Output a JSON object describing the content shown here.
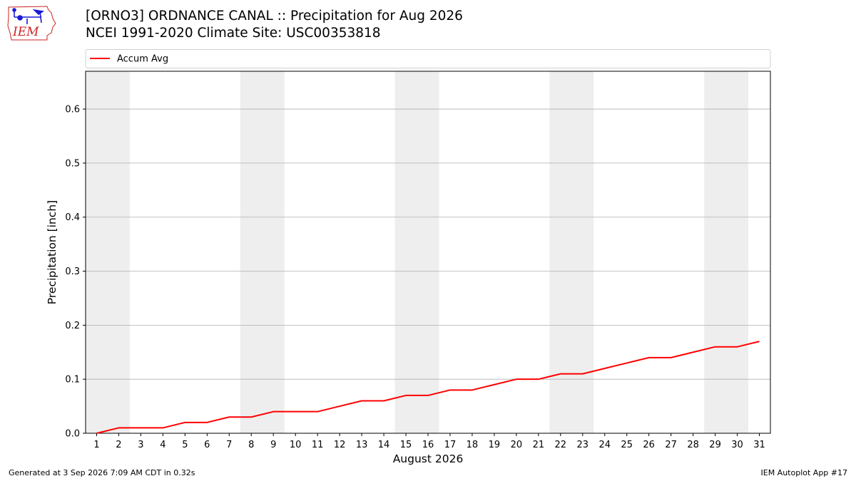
{
  "header": {
    "title_line1": "[ORNO3] ORDNANCE CANAL :: Precipitation for Aug 2026",
    "title_line2": "NCEI 1991-2020 Climate Site: USC00353818",
    "logo_text": "IEM"
  },
  "footer": {
    "left": "Generated at 3 Sep 2026 7:09 AM CDT in 0.32s",
    "right": "IEM Autoplot App #17"
  },
  "colors": {
    "line": "#ff0000",
    "weekend_band": "#eeeeee",
    "grid": "#b0b0b0",
    "logo_blue": "#1a1ad6",
    "logo_red": "#cc2222"
  },
  "chart_data": {
    "type": "line",
    "xlabel": "August 2026",
    "ylabel": "Precipitation [inch]",
    "ylim": [
      0,
      0.67
    ],
    "yticks": [
      0.0,
      0.1,
      0.2,
      0.3,
      0.4,
      0.5,
      0.6
    ],
    "ytick_labels": [
      "0.0",
      "0.1",
      "0.2",
      "0.3",
      "0.4",
      "0.5",
      "0.6"
    ],
    "xlim": [
      0.5,
      31.5
    ],
    "grid": "horizontal",
    "legend": {
      "placement": "top",
      "entries": [
        "Accum Avg"
      ]
    },
    "weekend_bands": [
      [
        1,
        2
      ],
      [
        8,
        9
      ],
      [
        15,
        16
      ],
      [
        22,
        23
      ],
      [
        29,
        30
      ]
    ],
    "categories": [
      "1",
      "2",
      "3",
      "4",
      "5",
      "6",
      "7",
      "8",
      "9",
      "10",
      "11",
      "12",
      "13",
      "14",
      "15",
      "16",
      "17",
      "18",
      "19",
      "20",
      "21",
      "22",
      "23",
      "24",
      "25",
      "26",
      "27",
      "28",
      "29",
      "30",
      "31"
    ],
    "series": [
      {
        "name": "Accum Avg",
        "color": "#ff0000",
        "x": [
          1,
          2,
          3,
          4,
          5,
          6,
          7,
          8,
          9,
          10,
          11,
          12,
          13,
          14,
          15,
          16,
          17,
          18,
          19,
          20,
          21,
          22,
          23,
          24,
          25,
          26,
          27,
          28,
          29,
          30,
          31
        ],
        "values": [
          0.0,
          0.01,
          0.01,
          0.01,
          0.02,
          0.02,
          0.03,
          0.03,
          0.04,
          0.04,
          0.04,
          0.05,
          0.06,
          0.06,
          0.07,
          0.07,
          0.08,
          0.08,
          0.09,
          0.1,
          0.1,
          0.11,
          0.11,
          0.12,
          0.13,
          0.14,
          0.14,
          0.15,
          0.16,
          0.16,
          0.17
        ]
      }
    ]
  }
}
